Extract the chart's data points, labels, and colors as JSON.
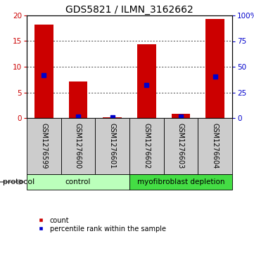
{
  "title": "GDS5821 / ILMN_3162662",
  "samples": [
    "GSM1276599",
    "GSM1276600",
    "GSM1276601",
    "GSM1276602",
    "GSM1276603",
    "GSM1276604"
  ],
  "counts": [
    18.2,
    7.1,
    0.1,
    14.4,
    0.8,
    19.3
  ],
  "percentiles": [
    41.5,
    1.5,
    0.5,
    32.5,
    1.5,
    40.5
  ],
  "ylim_left": [
    0,
    20
  ],
  "ylim_right": [
    0,
    100
  ],
  "yticks_left": [
    0,
    5,
    10,
    15,
    20
  ],
  "yticks_right": [
    0,
    25,
    50,
    75,
    100
  ],
  "ytick_labels_right": [
    "0",
    "25",
    "50",
    "75",
    "100%"
  ],
  "bar_color": "#cc0000",
  "dot_color": "#0000cc",
  "bg_color": "#ffffff",
  "plot_bg": "#ffffff",
  "grid_color": "#000000",
  "sample_box_color": "#cccccc",
  "groups": [
    {
      "label": "control",
      "start": 0,
      "end": 2,
      "color": "#bbffbb"
    },
    {
      "label": "myofibroblast depletion",
      "start": 3,
      "end": 5,
      "color": "#44dd44"
    }
  ],
  "protocol_label": "protocol",
  "legend_count": "count",
  "legend_percentile": "percentile rank within the sample",
  "title_fontsize": 10,
  "tick_fontsize": 7.5,
  "sample_fontsize": 7,
  "group_fontsize": 7.5,
  "legend_fontsize": 7,
  "bar_width": 0.55
}
